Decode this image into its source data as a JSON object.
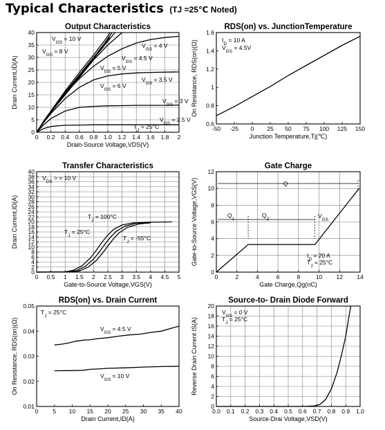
{
  "header": {
    "title": "Typical Characteristics",
    "condition": "(TJ =25℃ Noted)"
  },
  "chart_data": [
    {
      "type": "line",
      "title": "Output Characteristics",
      "xlabel": "Drain-Source Voltage,VDS(V)",
      "ylabel": "Drain Current,ID(A)",
      "xlim": [
        0,
        2
      ],
      "ylim": [
        0,
        40
      ],
      "xticks": [
        "0",
        "0.2",
        "0.4",
        "0.6",
        "0.8",
        "1.0",
        "1.2",
        "1.4",
        "1.6",
        "1.8",
        "2"
      ],
      "yticks": [
        "0",
        "5",
        "10",
        "15",
        "20",
        "25",
        "30",
        "35",
        "40"
      ],
      "grid": true,
      "annotations": [
        "TJ = 25°C"
      ],
      "series": [
        {
          "name": "VGS = 10 V",
          "x": [
            0,
            0.2,
            0.4,
            0.6,
            0.8,
            1.0,
            1.03
          ],
          "y": [
            0,
            8.5,
            16.5,
            24,
            31,
            38.5,
            40
          ]
        },
        {
          "name": "VGS = 8 V",
          "x": [
            0,
            0.2,
            0.4,
            0.6,
            0.8,
            0.95,
            1.03
          ],
          "y": [
            0,
            8.2,
            16,
            23,
            30,
            35,
            38
          ]
        },
        {
          "name": "VGS = 4.5 V",
          "x": [
            0,
            0.2,
            0.4,
            0.6,
            0.8,
            1.0,
            1.2
          ],
          "y": [
            0,
            8,
            15,
            22,
            29,
            35,
            40
          ]
        },
        {
          "name": "VGS = 5 V",
          "x": [
            0,
            0.2,
            0.4,
            0.6,
            0.8,
            1.0,
            1.1
          ],
          "y": [
            0,
            8.2,
            15.5,
            22.5,
            29.5,
            36.5,
            40
          ]
        },
        {
          "name": "VGS = 6 V",
          "x": [
            0,
            0.2,
            0.4,
            0.6,
            0.8,
            0.95,
            1.06
          ],
          "y": [
            0,
            8.3,
            15.8,
            23,
            30,
            35.5,
            40
          ]
        },
        {
          "name": "VGS = 4 V",
          "x": [
            0,
            0.1,
            0.2,
            0.4,
            0.6,
            0.8,
            1.0,
            1.2,
            1.4,
            1.6,
            1.8,
            2.0
          ],
          "y": [
            0,
            4.5,
            8.5,
            15.5,
            21.5,
            26.5,
            30.5,
            33.5,
            35.8,
            37.2,
            38,
            38.5
          ]
        },
        {
          "name": "VGS = 3.5 V",
          "x": [
            0,
            0.1,
            0.2,
            0.4,
            0.6,
            0.8,
            1.0,
            1.2,
            1.4,
            1.6,
            1.8,
            2.0
          ],
          "y": [
            0,
            4,
            7.5,
            13.5,
            18,
            21,
            22.6,
            23.4,
            23.8,
            24,
            24.1,
            24.2
          ]
        },
        {
          "name": "VGS = 3 V",
          "x": [
            0,
            0.1,
            0.2,
            0.4,
            0.6,
            0.8,
            1.0,
            1.2,
            1.4,
            1.6,
            1.8,
            2.0
          ],
          "y": [
            0,
            3,
            5.5,
            8.5,
            10,
            10.4,
            10.6,
            10.7,
            10.8,
            10.8,
            10.8,
            10.9
          ]
        },
        {
          "name": "VGS = 2.5 V",
          "x": [
            0,
            0.1,
            0.2,
            0.4,
            0.6,
            0.8,
            1.0,
            1.2,
            1.4,
            1.6,
            1.8,
            2.0
          ],
          "y": [
            0,
            1.5,
            2.3,
            2.8,
            2.9,
            3,
            3,
            3,
            3,
            3,
            3,
            3
          ]
        }
      ]
    },
    {
      "type": "line",
      "title": "RDS(on) vs. JunctionTemperature",
      "xlabel": "Junction Temperature,Tj(℃)",
      "ylabel": "On Resistance, RDS(on)(Ω)",
      "xlim": [
        -50,
        150
      ],
      "ylim": [
        0.6,
        1.6
      ],
      "xticks": [
        "-50",
        "-25",
        "0",
        "25",
        "50",
        "75",
        "100",
        "125",
        "150"
      ],
      "yticks": [
        "0.6",
        "0.8",
        "1",
        "1.2",
        "1.4",
        "1.6"
      ],
      "grid": false,
      "annotations": [
        "ID = 10 A",
        "VGS = 4.5V"
      ],
      "series": [
        {
          "name": "",
          "x": [
            -50,
            -25,
            0,
            25,
            50,
            75,
            100,
            125,
            150
          ],
          "y": [
            0.69,
            0.79,
            0.9,
            1.01,
            1.13,
            1.24,
            1.35,
            1.46,
            1.56
          ]
        }
      ]
    },
    {
      "type": "line",
      "title": "Transfer Characteristics",
      "xlabel": "Gate-to-Source Voltage,VGS(V)",
      "ylabel": "Drain Current,ID(A)",
      "xlim": [
        0,
        5
      ],
      "ylim": [
        0,
        40
      ],
      "xticks": [
        "0",
        "0.5",
        "1",
        "1.5",
        "2",
        "2.5",
        "3",
        "3.5",
        "4",
        "4.5",
        "5"
      ],
      "yticks": [
        "0",
        "2",
        "4",
        "6",
        "8",
        "10",
        "12",
        "14",
        "16",
        "18",
        "20",
        "22",
        "24",
        "26",
        "28",
        "30",
        "32",
        "34",
        "36",
        "38",
        "40"
      ],
      "grid": true,
      "annotations": [
        "VDS > = 10 V"
      ],
      "series": [
        {
          "name": "TJ = 100°C",
          "x": [
            0,
            1.0,
            1.3,
            1.6,
            1.9,
            2.1,
            2.3,
            2.5,
            2.7,
            3.0,
            3.4,
            4.0,
            4.75
          ],
          "y": [
            0,
            0.1,
            0.8,
            2.6,
            5.8,
            8.8,
            12,
            14.8,
            17,
            18.8,
            19.6,
            19.9,
            20
          ]
        },
        {
          "name": "TJ = 25°C",
          "x": [
            0,
            1.1,
            1.4,
            1.7,
            2.0,
            2.2,
            2.4,
            2.6,
            2.8,
            3.1,
            3.5,
            4.0
          ],
          "y": [
            0,
            0.1,
            0.6,
            2.2,
            5.2,
            8,
            11.2,
            14,
            16.3,
            18.3,
            19.5,
            19.8
          ]
        },
        {
          "name": "TJ = -55°C",
          "x": [
            0,
            1.2,
            1.5,
            1.8,
            2.1,
            2.3,
            2.5,
            2.7,
            2.9,
            3.2,
            3.6,
            4.0
          ],
          "y": [
            0,
            0.1,
            0.5,
            1.9,
            4.7,
            7.4,
            10.4,
            13.3,
            15.7,
            17.9,
            19.2,
            19.6
          ]
        }
      ]
    },
    {
      "type": "line",
      "title": "Gate Charge",
      "xlabel": "Gate Charge,Qg(nC)",
      "ylabel": "Gate-to-Source Voltage,VGS(V)",
      "xlim": [
        0,
        14
      ],
      "ylim": [
        0,
        12
      ],
      "xticks": [
        "0",
        "2",
        "4",
        "6",
        "8",
        "10",
        "12",
        "14"
      ],
      "yticks": [
        "0",
        "2",
        "4",
        "6",
        "8",
        "10",
        "12"
      ],
      "grid": true,
      "annotations": [
        "Q",
        "Q1",
        "Q2",
        "VGS",
        "ID = 20 A",
        "TJ = 25°C"
      ],
      "series": [
        {
          "name": "VGS",
          "x": [
            0,
            3.1,
            9.6,
            13.9
          ],
          "y": [
            0,
            3.3,
            3.3,
            10
          ]
        }
      ]
    },
    {
      "type": "line",
      "title": "RDS(on) vs. Drain Current",
      "xlabel": "Drain Current,ID(A)",
      "ylabel": "On Resistance, RDS(on)(Ω)",
      "xlim": [
        0,
        40
      ],
      "ylim": [
        0.01,
        0.05
      ],
      "xticks": [
        "0",
        "5",
        "10",
        "15",
        "20",
        "25",
        "30",
        "35",
        "40"
      ],
      "yticks": [
        "0.01",
        "0.02",
        "0.03",
        "0.04",
        "0.05"
      ],
      "grid": false,
      "annotations": [
        "TJ = 25°C"
      ],
      "series": [
        {
          "name": "VGS = 4.5 V",
          "x": [
            5,
            7,
            9,
            11,
            13,
            15,
            17,
            20,
            23,
            26,
            29,
            32,
            35,
            38,
            40
          ],
          "y": [
            0.0345,
            0.0348,
            0.0353,
            0.036,
            0.0364,
            0.0366,
            0.037,
            0.0374,
            0.038,
            0.0385,
            0.0388,
            0.0395,
            0.04,
            0.0412,
            0.042
          ]
        },
        {
          "name": "VGS = 10 V",
          "x": [
            5,
            10,
            13,
            15,
            18,
            20,
            25,
            30,
            35,
            40
          ],
          "y": [
            0.0242,
            0.0243,
            0.0244,
            0.0248,
            0.025,
            0.0252,
            0.0254,
            0.0257,
            0.0259,
            0.026
          ]
        }
      ]
    },
    {
      "type": "line",
      "title": "Source-to- Drain Diode Forward",
      "xlabel": "Source-Drai Voltage,VSD(V)",
      "ylabel": "Reverse Drain Current IS(A)",
      "xlim": [
        0,
        1.0
      ],
      "ylim": [
        0,
        20
      ],
      "xticks": [
        "0.0",
        "0.1",
        "0.2",
        "0.3",
        "0.4",
        "0.5",
        "0.6",
        "0.7",
        "0.8",
        "0.9",
        "1.0"
      ],
      "yticks": [
        "0",
        "2",
        "4",
        "6",
        "8",
        "10",
        "12",
        "14",
        "16",
        "18",
        "20"
      ],
      "grid": true,
      "annotations": [
        "VGS = 0 V",
        "TJ = 25°C"
      ],
      "series": [
        {
          "name": "",
          "x": [
            0,
            0.6,
            0.68,
            0.72,
            0.76,
            0.8,
            0.84,
            0.87,
            0.9,
            0.92,
            0.935
          ],
          "y": [
            0,
            0,
            0.1,
            0.4,
            1.4,
            3.5,
            6.8,
            10.2,
            14,
            17.5,
            20
          ]
        }
      ]
    }
  ]
}
